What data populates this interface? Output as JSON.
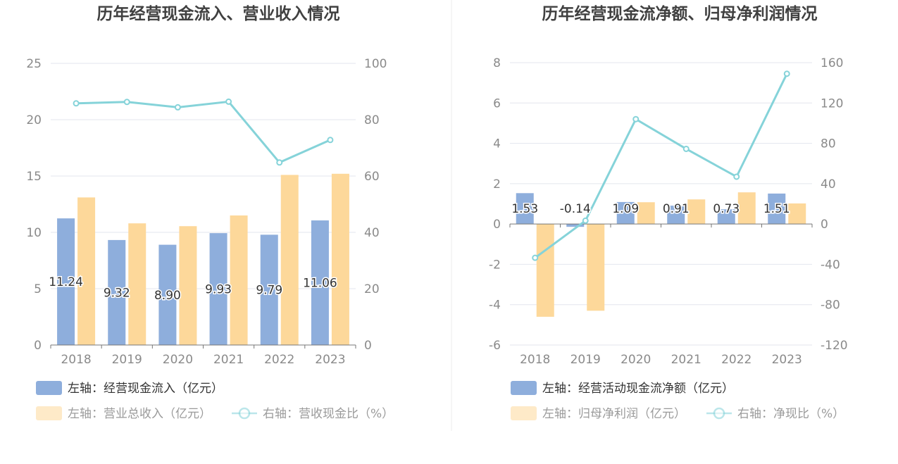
{
  "colors": {
    "bar_blue": "#8eaedc",
    "bar_orange": "#fdd89a",
    "line": "#85d3d9",
    "axis_text": "#8a8a8a",
    "grid": "#e3e6ee",
    "title": "#404040"
  },
  "chart_data": [
    {
      "type": "bar",
      "title": "历年经营现金流入、营业收入情况",
      "categories": [
        "2018",
        "2019",
        "2020",
        "2021",
        "2022",
        "2023"
      ],
      "left_axis": {
        "ylim": [
          0,
          25
        ],
        "ticks": [
          "0",
          "5",
          "10",
          "15",
          "20",
          "25"
        ]
      },
      "right_axis": {
        "ylim": [
          0,
          100
        ],
        "ticks": [
          "0",
          "20",
          "40",
          "60",
          "80",
          "100"
        ]
      },
      "series": [
        {
          "name": "左轴：经营现金流入（亿元）",
          "axis": "left",
          "kind": "bar",
          "values": [
            11.24,
            9.32,
            8.9,
            9.93,
            9.79,
            11.06
          ],
          "labels": [
            "11.24",
            "9.32",
            "8.90",
            "9.93",
            "9.79",
            "11.06"
          ]
        },
        {
          "name": "左轴：营业总收入（亿元）",
          "axis": "left",
          "kind": "bar",
          "values": [
            13.1,
            10.8,
            10.55,
            11.5,
            15.1,
            15.2
          ]
        },
        {
          "name": "右轴：营收现金比（%）",
          "axis": "right",
          "kind": "line",
          "values": [
            85.8,
            86.3,
            84.4,
            86.4,
            64.8,
            72.8
          ]
        }
      ]
    },
    {
      "type": "bar",
      "title": "历年经营现金流净额、归母净利润情况",
      "categories": [
        "2018",
        "2019",
        "2020",
        "2021",
        "2022",
        "2023"
      ],
      "left_axis": {
        "ylim": [
          -6,
          8
        ],
        "ticks": [
          "-6",
          "-4",
          "-2",
          "0",
          "2",
          "4",
          "6",
          "8"
        ]
      },
      "right_axis": {
        "ylim": [
          -120,
          160
        ],
        "ticks": [
          "-120",
          "-80",
          "-40",
          "0",
          "40",
          "80",
          "120",
          "160"
        ]
      },
      "series": [
        {
          "name": "左轴：经营活动现金流净额（亿元）",
          "axis": "left",
          "kind": "bar",
          "values": [
            1.53,
            -0.14,
            1.09,
            0.91,
            0.73,
            1.51
          ],
          "labels": [
            "1.53",
            "-0.14",
            "1.09",
            "0.91",
            "0.73",
            "1.51"
          ]
        },
        {
          "name": "左轴：归母净利润（亿元）",
          "axis": "left",
          "kind": "bar",
          "values": [
            -4.6,
            -4.3,
            1.08,
            1.22,
            1.57,
            1.02
          ]
        },
        {
          "name": "右轴：净现比（%）",
          "axis": "right",
          "kind": "line",
          "values": [
            -33.5,
            3.3,
            104,
            74.5,
            46.9,
            149
          ]
        }
      ]
    }
  ]
}
